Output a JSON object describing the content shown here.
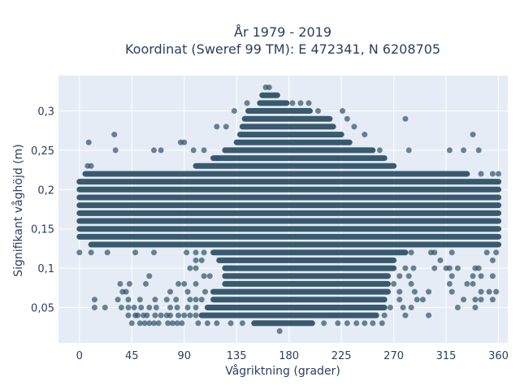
{
  "chart_data": {
    "type": "scatter",
    "title_lines": [
      "År 1979 - 2019",
      "Koordinat (Sweref 99 TM): E 472341, N 6208705"
    ],
    "xlabel": "Vågriktning (grader)",
    "ylabel": "Signifikant våghöjd (m)",
    "xlim": [
      -18,
      368
    ],
    "ylim": [
      0.005,
      0.345
    ],
    "x_ticks": [
      0,
      45,
      90,
      135,
      180,
      225,
      270,
      315,
      360
    ],
    "y_ticks": [
      0.05,
      0.1,
      0.15,
      0.2,
      0.25,
      0.3
    ],
    "y_tick_labels": [
      "0,05",
      "0,1",
      "0,15",
      "0,2",
      "0,25",
      "0,3"
    ],
    "grid": true,
    "colors": {
      "marker": "#2f5266",
      "plot_bg": "#e5ecf6",
      "grid": "#ffffff"
    },
    "dense_bands": [
      {
        "y": 0.22,
        "x_start": 5,
        "x_end": 333
      },
      {
        "y": 0.21,
        "x_start": 0,
        "x_end": 360
      },
      {
        "y": 0.2,
        "x_start": 0,
        "x_end": 360
      },
      {
        "y": 0.19,
        "x_start": 0,
        "x_end": 360
      },
      {
        "y": 0.18,
        "x_start": 0,
        "x_end": 360
      },
      {
        "y": 0.17,
        "x_start": 0,
        "x_end": 360
      },
      {
        "y": 0.16,
        "x_start": 0,
        "x_end": 360
      },
      {
        "y": 0.15,
        "x_start": 0,
        "x_end": 360
      },
      {
        "y": 0.14,
        "x_start": 0,
        "x_end": 360
      },
      {
        "y": 0.13,
        "x_start": 10,
        "x_end": 360
      },
      {
        "y": 0.12,
        "x_start": 115,
        "x_end": 280
      },
      {
        "y": 0.11,
        "x_start": 120,
        "x_end": 270
      },
      {
        "y": 0.1,
        "x_start": 125,
        "x_end": 270
      },
      {
        "y": 0.09,
        "x_start": 125,
        "x_end": 265
      },
      {
        "y": 0.08,
        "x_start": 125,
        "x_end": 265
      },
      {
        "y": 0.07,
        "x_start": 115,
        "x_end": 265
      },
      {
        "y": 0.06,
        "x_start": 115,
        "x_end": 262
      },
      {
        "y": 0.05,
        "x_start": 110,
        "x_end": 262
      },
      {
        "y": 0.04,
        "x_start": 105,
        "x_end": 255
      },
      {
        "y": 0.03,
        "x_start": 150,
        "x_end": 200
      },
      {
        "y": 0.23,
        "x_start": 100,
        "x_end": 270
      },
      {
        "y": 0.24,
        "x_start": 115,
        "x_end": 262
      },
      {
        "y": 0.25,
        "x_start": 125,
        "x_end": 252
      },
      {
        "y": 0.26,
        "x_start": 135,
        "x_end": 232
      },
      {
        "y": 0.27,
        "x_start": 138,
        "x_end": 225
      },
      {
        "y": 0.28,
        "x_start": 140,
        "x_end": 218
      },
      {
        "y": 0.29,
        "x_start": 142,
        "x_end": 215
      },
      {
        "y": 0.3,
        "x_start": 145,
        "x_end": 198
      },
      {
        "y": 0.31,
        "x_start": 155,
        "x_end": 178
      },
      {
        "y": 0.32,
        "x_start": 157,
        "x_end": 170
      }
    ],
    "scatter_points": [
      [
        160,
        0.33
      ],
      [
        163,
        0.33
      ],
      [
        183,
        0.31
      ],
      [
        190,
        0.31
      ],
      [
        8,
        0.26
      ],
      [
        30,
        0.27
      ],
      [
        31,
        0.25
      ],
      [
        64,
        0.25
      ],
      [
        70,
        0.25
      ],
      [
        87,
        0.26
      ],
      [
        90,
        0.26
      ],
      [
        98,
        0.25
      ],
      [
        107,
        0.25
      ],
      [
        118,
        0.24
      ],
      [
        118,
        0.28
      ],
      [
        126,
        0.28
      ],
      [
        133,
        0.3
      ],
      [
        144,
        0.31
      ],
      [
        197,
        0.31
      ],
      [
        205,
        0.3
      ],
      [
        226,
        0.3
      ],
      [
        230,
        0.29
      ],
      [
        236,
        0.28
      ],
      [
        245,
        0.27
      ],
      [
        258,
        0.25
      ],
      [
        280,
        0.29
      ],
      [
        283,
        0.25
      ],
      [
        318,
        0.25
      ],
      [
        330,
        0.25
      ],
      [
        338,
        0.27
      ],
      [
        343,
        0.25
      ],
      [
        7,
        0.23
      ],
      [
        10,
        0.23
      ],
      [
        345,
        0.22
      ],
      [
        355,
        0.22
      ],
      [
        360,
        0.22
      ],
      [
        0,
        0.12
      ],
      [
        10,
        0.12
      ],
      [
        24,
        0.12
      ],
      [
        48,
        0.12
      ],
      [
        64,
        0.12
      ],
      [
        92,
        0.12
      ],
      [
        100,
        0.12
      ],
      [
        107,
        0.12
      ],
      [
        285,
        0.12
      ],
      [
        302,
        0.12
      ],
      [
        305,
        0.12
      ],
      [
        320,
        0.12
      ],
      [
        350,
        0.12
      ],
      [
        358,
        0.12
      ],
      [
        100,
        0.11
      ],
      [
        105,
        0.11
      ],
      [
        310,
        0.11
      ],
      [
        355,
        0.11
      ],
      [
        95,
        0.1
      ],
      [
        100,
        0.1
      ],
      [
        280,
        0.1
      ],
      [
        287,
        0.1
      ],
      [
        305,
        0.1
      ],
      [
        315,
        0.1
      ],
      [
        318,
        0.1
      ],
      [
        325,
        0.1
      ],
      [
        340,
        0.1
      ],
      [
        343,
        0.1
      ],
      [
        60,
        0.09
      ],
      [
        107,
        0.09
      ],
      [
        112,
        0.09
      ],
      [
        275,
        0.09
      ],
      [
        283,
        0.09
      ],
      [
        320,
        0.09
      ],
      [
        338,
        0.09
      ],
      [
        345,
        0.09
      ],
      [
        355,
        0.09
      ],
      [
        35,
        0.08
      ],
      [
        43,
        0.08
      ],
      [
        57,
        0.08
      ],
      [
        85,
        0.08
      ],
      [
        90,
        0.08
      ],
      [
        100,
        0.08
      ],
      [
        270,
        0.08
      ],
      [
        285,
        0.08
      ],
      [
        318,
        0.08
      ],
      [
        333,
        0.08
      ],
      [
        338,
        0.08
      ],
      [
        37,
        0.07
      ],
      [
        40,
        0.07
      ],
      [
        78,
        0.07
      ],
      [
        93,
        0.07
      ],
      [
        108,
        0.07
      ],
      [
        275,
        0.07
      ],
      [
        288,
        0.07
      ],
      [
        300,
        0.07
      ],
      [
        320,
        0.07
      ],
      [
        345,
        0.07
      ],
      [
        352,
        0.07
      ],
      [
        358,
        0.07
      ],
      [
        13,
        0.06
      ],
      [
        33,
        0.06
      ],
      [
        42,
        0.06
      ],
      [
        52,
        0.06
      ],
      [
        65,
        0.06
      ],
      [
        75,
        0.06
      ],
      [
        83,
        0.06
      ],
      [
        95,
        0.06
      ],
      [
        100,
        0.06
      ],
      [
        105,
        0.06
      ],
      [
        275,
        0.06
      ],
      [
        290,
        0.06
      ],
      [
        295,
        0.06
      ],
      [
        330,
        0.06
      ],
      [
        340,
        0.06
      ],
      [
        345,
        0.06
      ],
      [
        355,
        0.06
      ],
      [
        13,
        0.05
      ],
      [
        22,
        0.05
      ],
      [
        36,
        0.05
      ],
      [
        42,
        0.05
      ],
      [
        47,
        0.05
      ],
      [
        53,
        0.05
      ],
      [
        60,
        0.05
      ],
      [
        66,
        0.05
      ],
      [
        78,
        0.05
      ],
      [
        84,
        0.05
      ],
      [
        93,
        0.05
      ],
      [
        100,
        0.05
      ],
      [
        267,
        0.05
      ],
      [
        278,
        0.05
      ],
      [
        285,
        0.05
      ],
      [
        325,
        0.05
      ],
      [
        340,
        0.05
      ],
      [
        42,
        0.04
      ],
      [
        48,
        0.04
      ],
      [
        50,
        0.04
      ],
      [
        55,
        0.04
      ],
      [
        58,
        0.04
      ],
      [
        65,
        0.04
      ],
      [
        70,
        0.04
      ],
      [
        75,
        0.04
      ],
      [
        78,
        0.04
      ],
      [
        85,
        0.04
      ],
      [
        90,
        0.04
      ],
      [
        95,
        0.04
      ],
      [
        100,
        0.04
      ],
      [
        262,
        0.04
      ],
      [
        280,
        0.04
      ],
      [
        300,
        0.04
      ],
      [
        45,
        0.03
      ],
      [
        52,
        0.03
      ],
      [
        56,
        0.03
      ],
      [
        60,
        0.03
      ],
      [
        64,
        0.03
      ],
      [
        68,
        0.03
      ],
      [
        76,
        0.03
      ],
      [
        80,
        0.03
      ],
      [
        84,
        0.03
      ],
      [
        88,
        0.03
      ],
      [
        102,
        0.03
      ],
      [
        110,
        0.03
      ],
      [
        118,
        0.03
      ],
      [
        130,
        0.03
      ],
      [
        140,
        0.03
      ],
      [
        210,
        0.03
      ],
      [
        222,
        0.03
      ],
      [
        230,
        0.03
      ],
      [
        238,
        0.03
      ],
      [
        245,
        0.03
      ],
      [
        252,
        0.03
      ],
      [
        260,
        0.03
      ],
      [
        172,
        0.02
      ]
    ]
  }
}
